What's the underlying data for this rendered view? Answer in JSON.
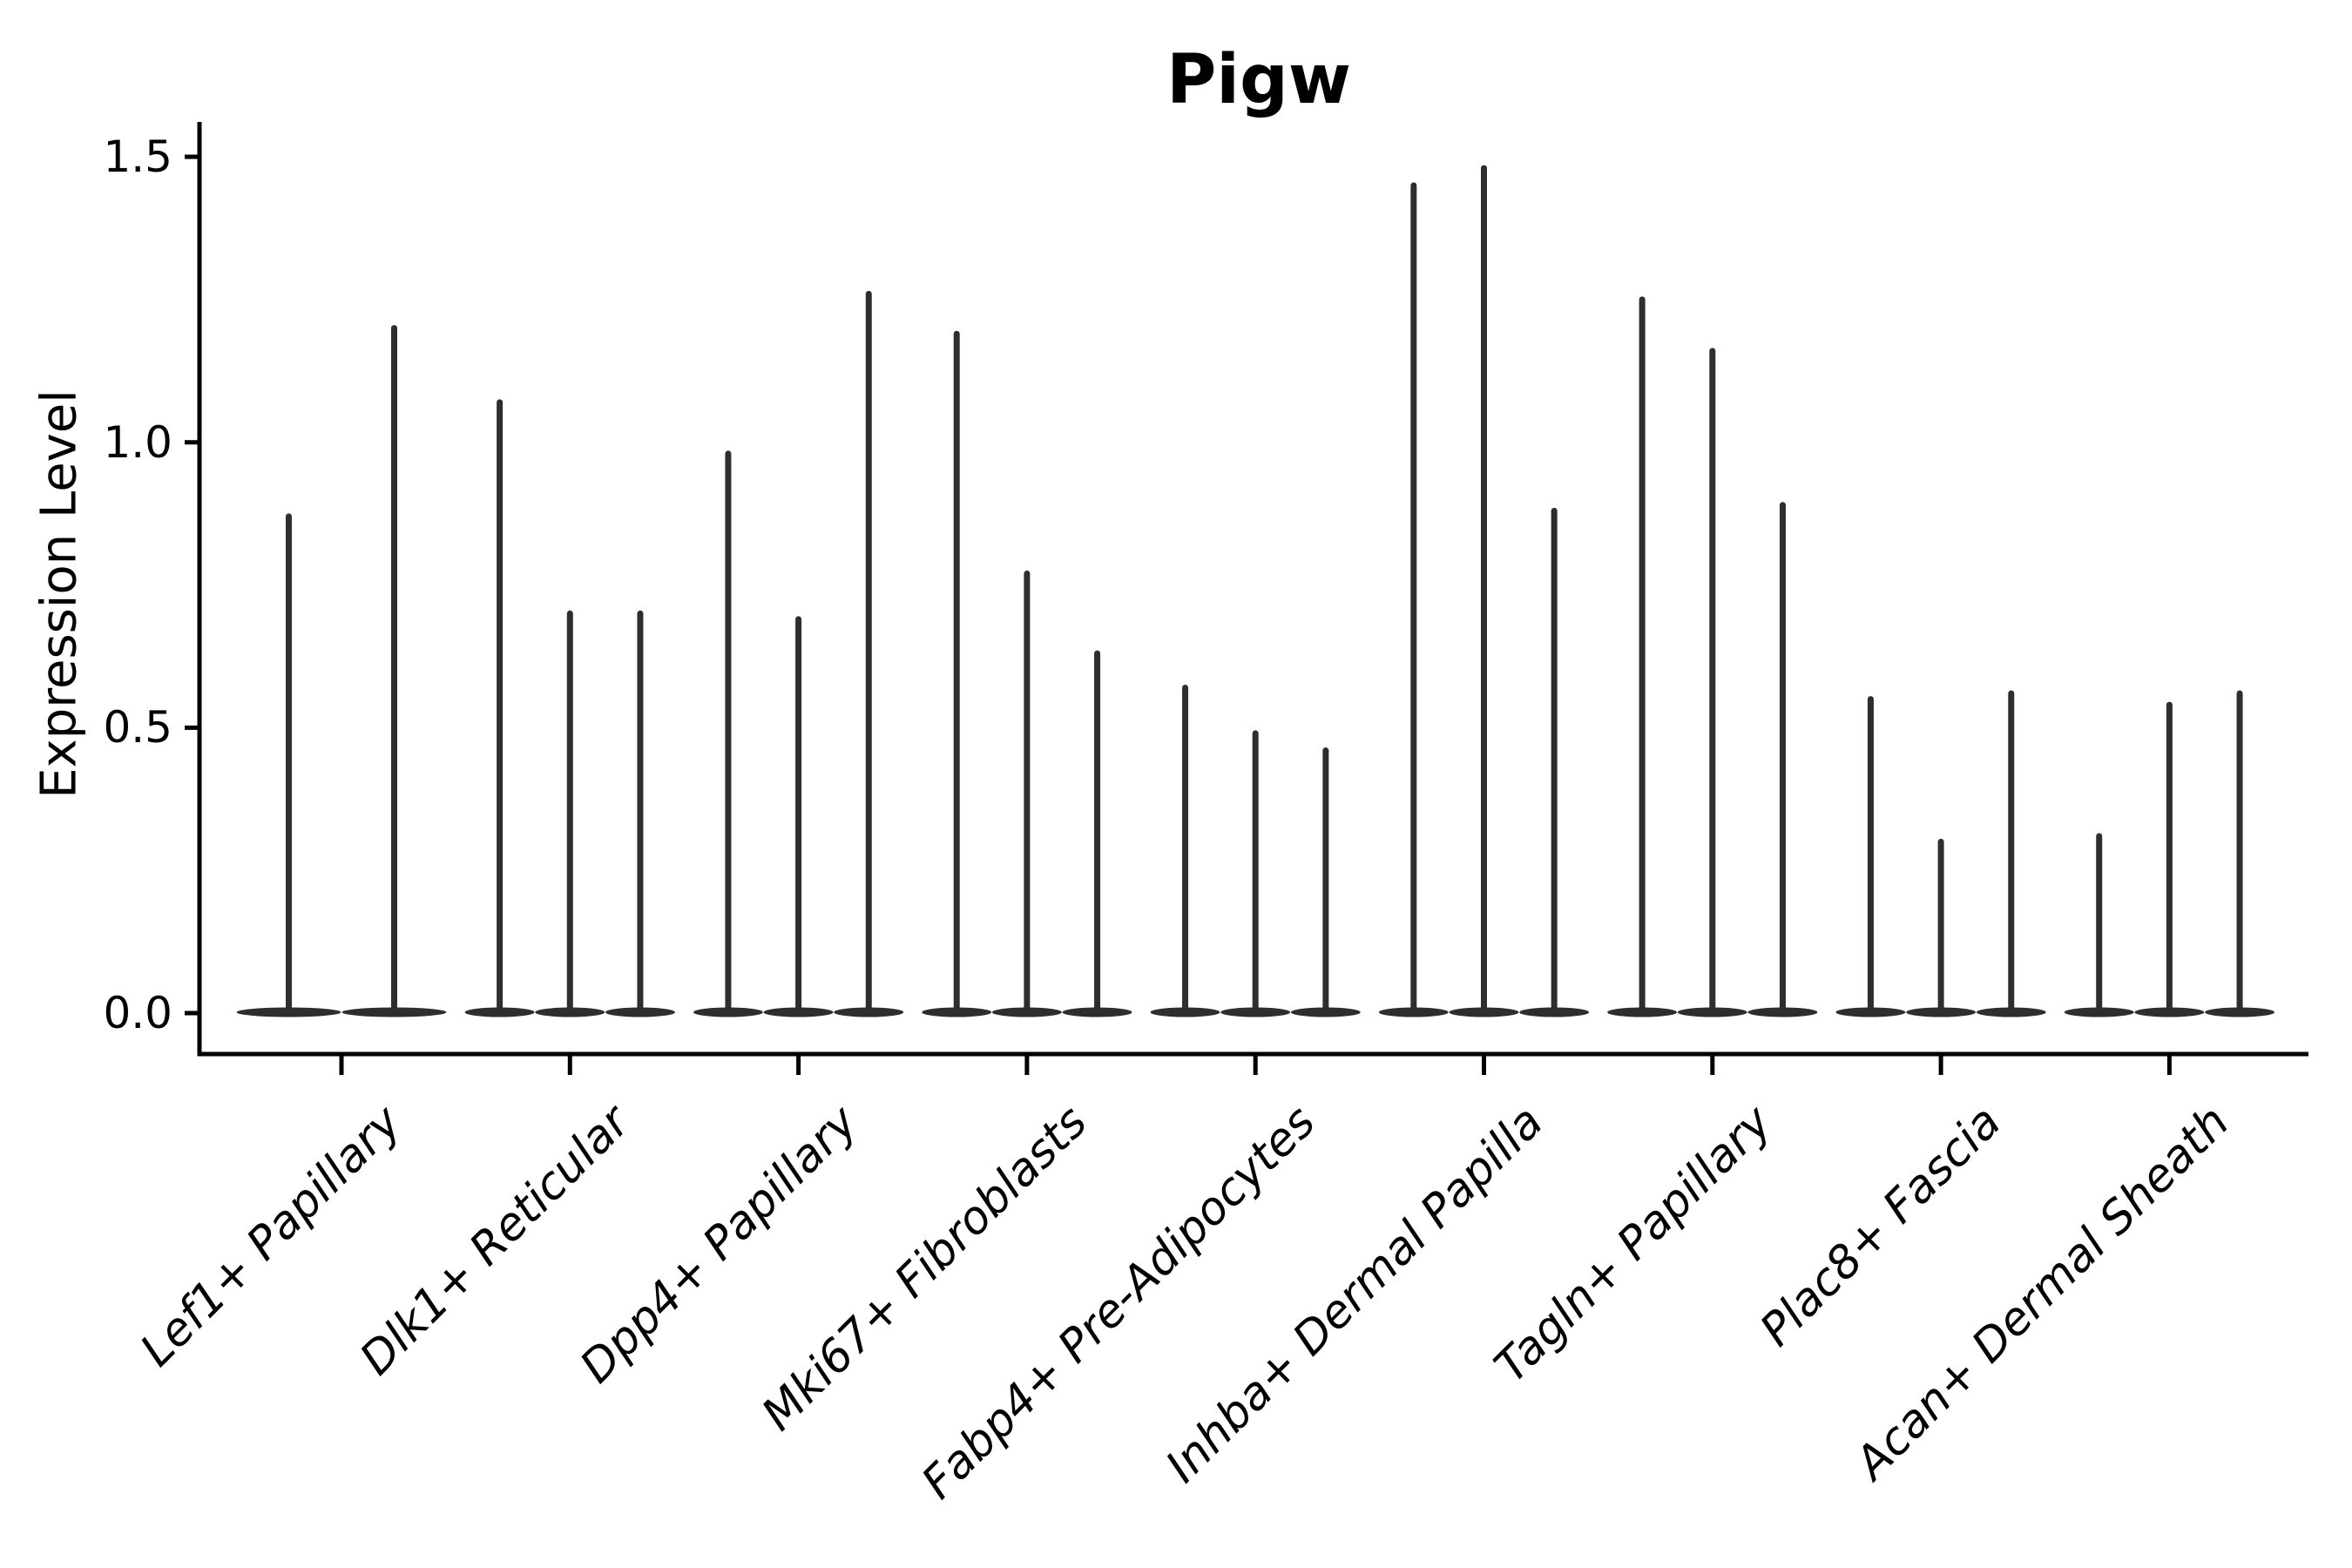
{
  "chart_data": {
    "type": "violin",
    "title": "Pigw",
    "ylabel": "Expression Level",
    "xlabel": "",
    "ylim": [
      -0.07,
      1.56
    ],
    "yticks": [
      0.0,
      0.5,
      1.0,
      1.5
    ],
    "ytick_labels": [
      "0.0",
      "0.5",
      "1.0",
      "1.5"
    ],
    "grid": false,
    "legend_position": "none",
    "violin_color": "#2e2e2e",
    "axis_color": "#000000",
    "note": "Very narrow violins: dense flat bulge at expression 0 with a thin spike rising to each violin's maximum expression value.",
    "categories": [
      "Lef1+ Papillary",
      "Dlk1+ Reticular",
      "Dpp4+ Papillary",
      "Mki67+ Fibroblasts",
      "Fabp4+ Pre-Adipocytes",
      "Inhba+ Dermal Papilla",
      "Tagln+ Papillary",
      "Plac8+ Fascia",
      "Acan+ Dermal Sheath"
    ],
    "series": [
      {
        "category": "Lef1+ Papillary",
        "violin_max_values": [
          0.87,
          1.2
        ]
      },
      {
        "category": "Dlk1+ Reticular",
        "violin_max_values": [
          1.07,
          0.7,
          0.7
        ]
      },
      {
        "category": "Dpp4+ Papillary",
        "violin_max_values": [
          0.98,
          0.69,
          1.26
        ]
      },
      {
        "category": "Mki67+ Fibroblasts",
        "violin_max_values": [
          1.19,
          0.77,
          0.63
        ]
      },
      {
        "category": "Fabp4+ Pre-Adipocytes",
        "violin_max_values": [
          0.57,
          0.49,
          0.46
        ]
      },
      {
        "category": "Inhba+ Dermal Papilla",
        "violin_max_values": [
          1.45,
          1.48,
          0.88
        ]
      },
      {
        "category": "Tagln+ Papillary",
        "violin_max_values": [
          1.25,
          1.16,
          0.89
        ]
      },
      {
        "category": "Plac8+ Fascia",
        "violin_max_values": [
          0.55,
          0.3,
          0.56
        ]
      },
      {
        "category": "Acan+ Dermal Sheath",
        "violin_max_values": [
          0.31,
          0.54,
          0.56
        ]
      }
    ]
  }
}
